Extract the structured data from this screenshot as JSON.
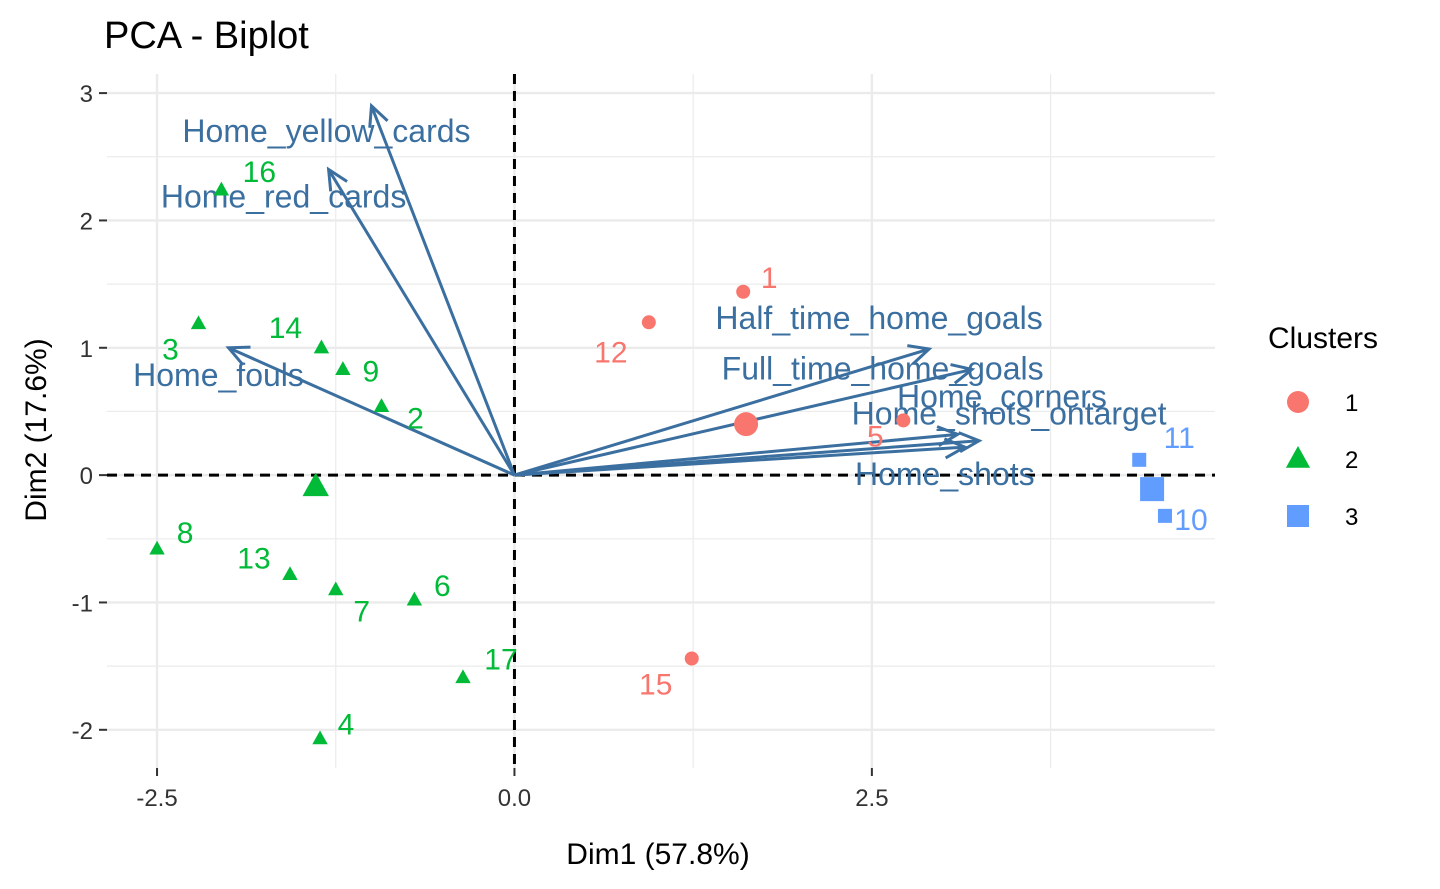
{
  "chart_data": {
    "type": "scatter",
    "title": "PCA - Biplot",
    "xlabel": "Dim1 (57.8%)",
    "ylabel": "Dim2 (17.6%)",
    "xlim": [
      -2.85,
      4.9
    ],
    "ylim": [
      -2.3,
      3.15
    ],
    "x_ticks": [
      -2.5,
      0.0,
      2.5
    ],
    "x_tick_labels": [
      "-2.5",
      "0.0",
      "2.5"
    ],
    "y_ticks": [
      -2,
      -1,
      0,
      1,
      2,
      3
    ],
    "y_tick_labels": [
      "-2",
      "-1",
      "0",
      "1",
      "2",
      "3"
    ],
    "grid": true,
    "reference_lines": [
      {
        "axis": "x",
        "value": 0,
        "style": "dashed"
      },
      {
        "axis": "y",
        "value": 0,
        "style": "dashed"
      }
    ],
    "legend": {
      "title": "Clusters",
      "placement": "right",
      "entries": [
        {
          "label": "1",
          "color": "#f8766d",
          "shape": "circle"
        },
        {
          "label": "2",
          "color": "#00ba38",
          "shape": "triangle"
        },
        {
          "label": "3",
          "color": "#619cff",
          "shape": "square"
        }
      ]
    },
    "series": [
      {
        "cluster": "1",
        "color": "#f8766d",
        "shape": "circle",
        "centroid": {
          "x": 1.62,
          "y": 0.4
        },
        "points": [
          {
            "label": "1",
            "x": 1.6,
            "y": 1.44
          },
          {
            "label": "12",
            "x": 0.94,
            "y": 1.2
          },
          {
            "label": "5",
            "x": 2.72,
            "y": 0.43
          },
          {
            "label": "15",
            "x": 1.24,
            "y": -1.44
          }
        ]
      },
      {
        "cluster": "2",
        "color": "#00ba38",
        "shape": "triangle",
        "centroid": {
          "x": -1.39,
          "y": -0.09
        },
        "points": [
          {
            "label": "16",
            "x": -2.05,
            "y": 2.24
          },
          {
            "label": "3",
            "x": -2.21,
            "y": 1.19
          },
          {
            "label": "14",
            "x": -1.35,
            "y": 1.0
          },
          {
            "label": "9",
            "x": -1.2,
            "y": 0.83
          },
          {
            "label": "2",
            "x": -0.93,
            "y": 0.54
          },
          {
            "label": "8",
            "x": -2.5,
            "y": -0.58
          },
          {
            "label": "13",
            "x": -1.57,
            "y": -0.78
          },
          {
            "label": "7",
            "x": -1.25,
            "y": -0.9
          },
          {
            "label": "6",
            "x": -0.7,
            "y": -0.98
          },
          {
            "label": "17",
            "x": -0.36,
            "y": -1.59
          },
          {
            "label": "4",
            "x": -1.36,
            "y": -2.07
          }
        ]
      },
      {
        "cluster": "3",
        "color": "#619cff",
        "shape": "square",
        "centroid": {
          "x": 4.46,
          "y": -0.11
        },
        "points": [
          {
            "label": "11",
            "x": 4.37,
            "y": 0.12
          },
          {
            "label": "10",
            "x": 4.55,
            "y": -0.32
          }
        ]
      }
    ],
    "variables": [
      {
        "name": "Home_yellow_cards",
        "x": -1.0,
        "y": 2.9
      },
      {
        "name": "Home_red_cards",
        "x": -1.3,
        "y": 2.4
      },
      {
        "name": "Home_fouls",
        "x": -2.0,
        "y": 1.0
      },
      {
        "name": "Full_time_home_goals",
        "x": 3.1,
        "y": 0.32
      },
      {
        "name": "Half_time_home_goals",
        "x": 2.9,
        "y": 0.99
      },
      {
        "name": "Home_corners",
        "x": 3.2,
        "y": 0.83
      },
      {
        "name": "Home_shots_ontarget",
        "x": 3.25,
        "y": 0.27
      },
      {
        "name": "Home_shots",
        "x": 3.15,
        "y": 0.22
      }
    ],
    "variable_color": "#3b6fa0"
  }
}
